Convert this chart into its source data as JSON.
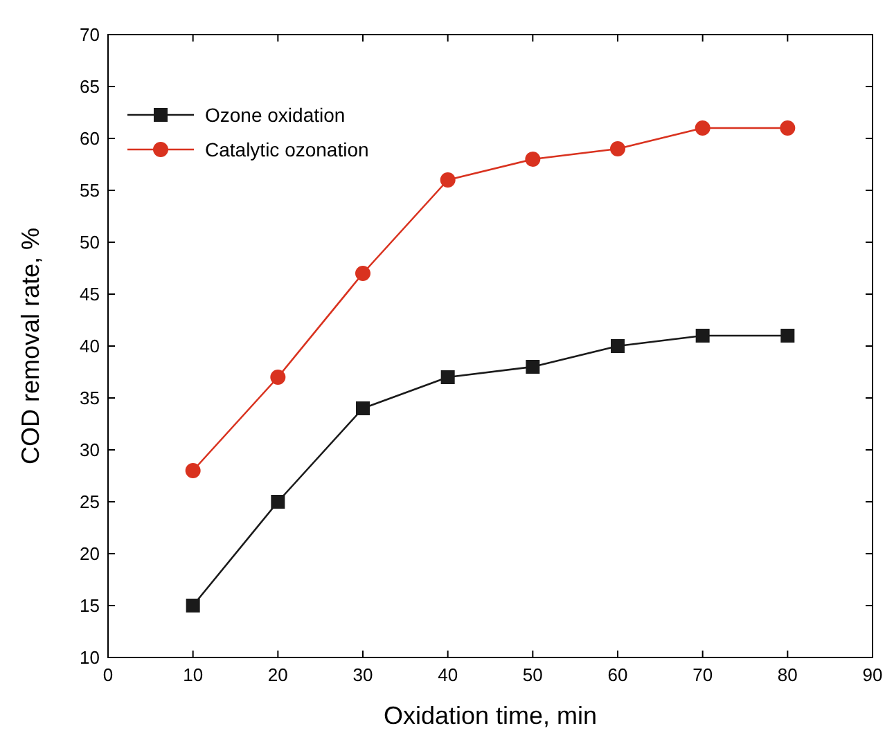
{
  "chart_data": {
    "type": "line",
    "xlabel": "Oxidation time, min",
    "ylabel": "COD removal rate, %",
    "x": [
      10,
      20,
      30,
      40,
      50,
      60,
      70,
      80
    ],
    "series": [
      {
        "name": "Ozone oxidation",
        "color": "#1a1a1a",
        "marker": "square",
        "values": [
          15,
          25,
          34,
          37,
          38,
          40,
          41,
          41
        ]
      },
      {
        "name": "Catalytic ozonation",
        "color": "#d9321f",
        "marker": "circle",
        "values": [
          28,
          37,
          47,
          56,
          58,
          59,
          61,
          61
        ]
      }
    ],
    "xlim": [
      0,
      90
    ],
    "xticks": [
      0,
      10,
      20,
      30,
      40,
      50,
      60,
      70,
      80,
      90
    ],
    "ylim": [
      10,
      70
    ],
    "yticks": [
      10,
      15,
      20,
      25,
      30,
      35,
      40,
      45,
      50,
      55,
      60,
      65,
      70
    ],
    "grid": false,
    "legend": "top left"
  }
}
